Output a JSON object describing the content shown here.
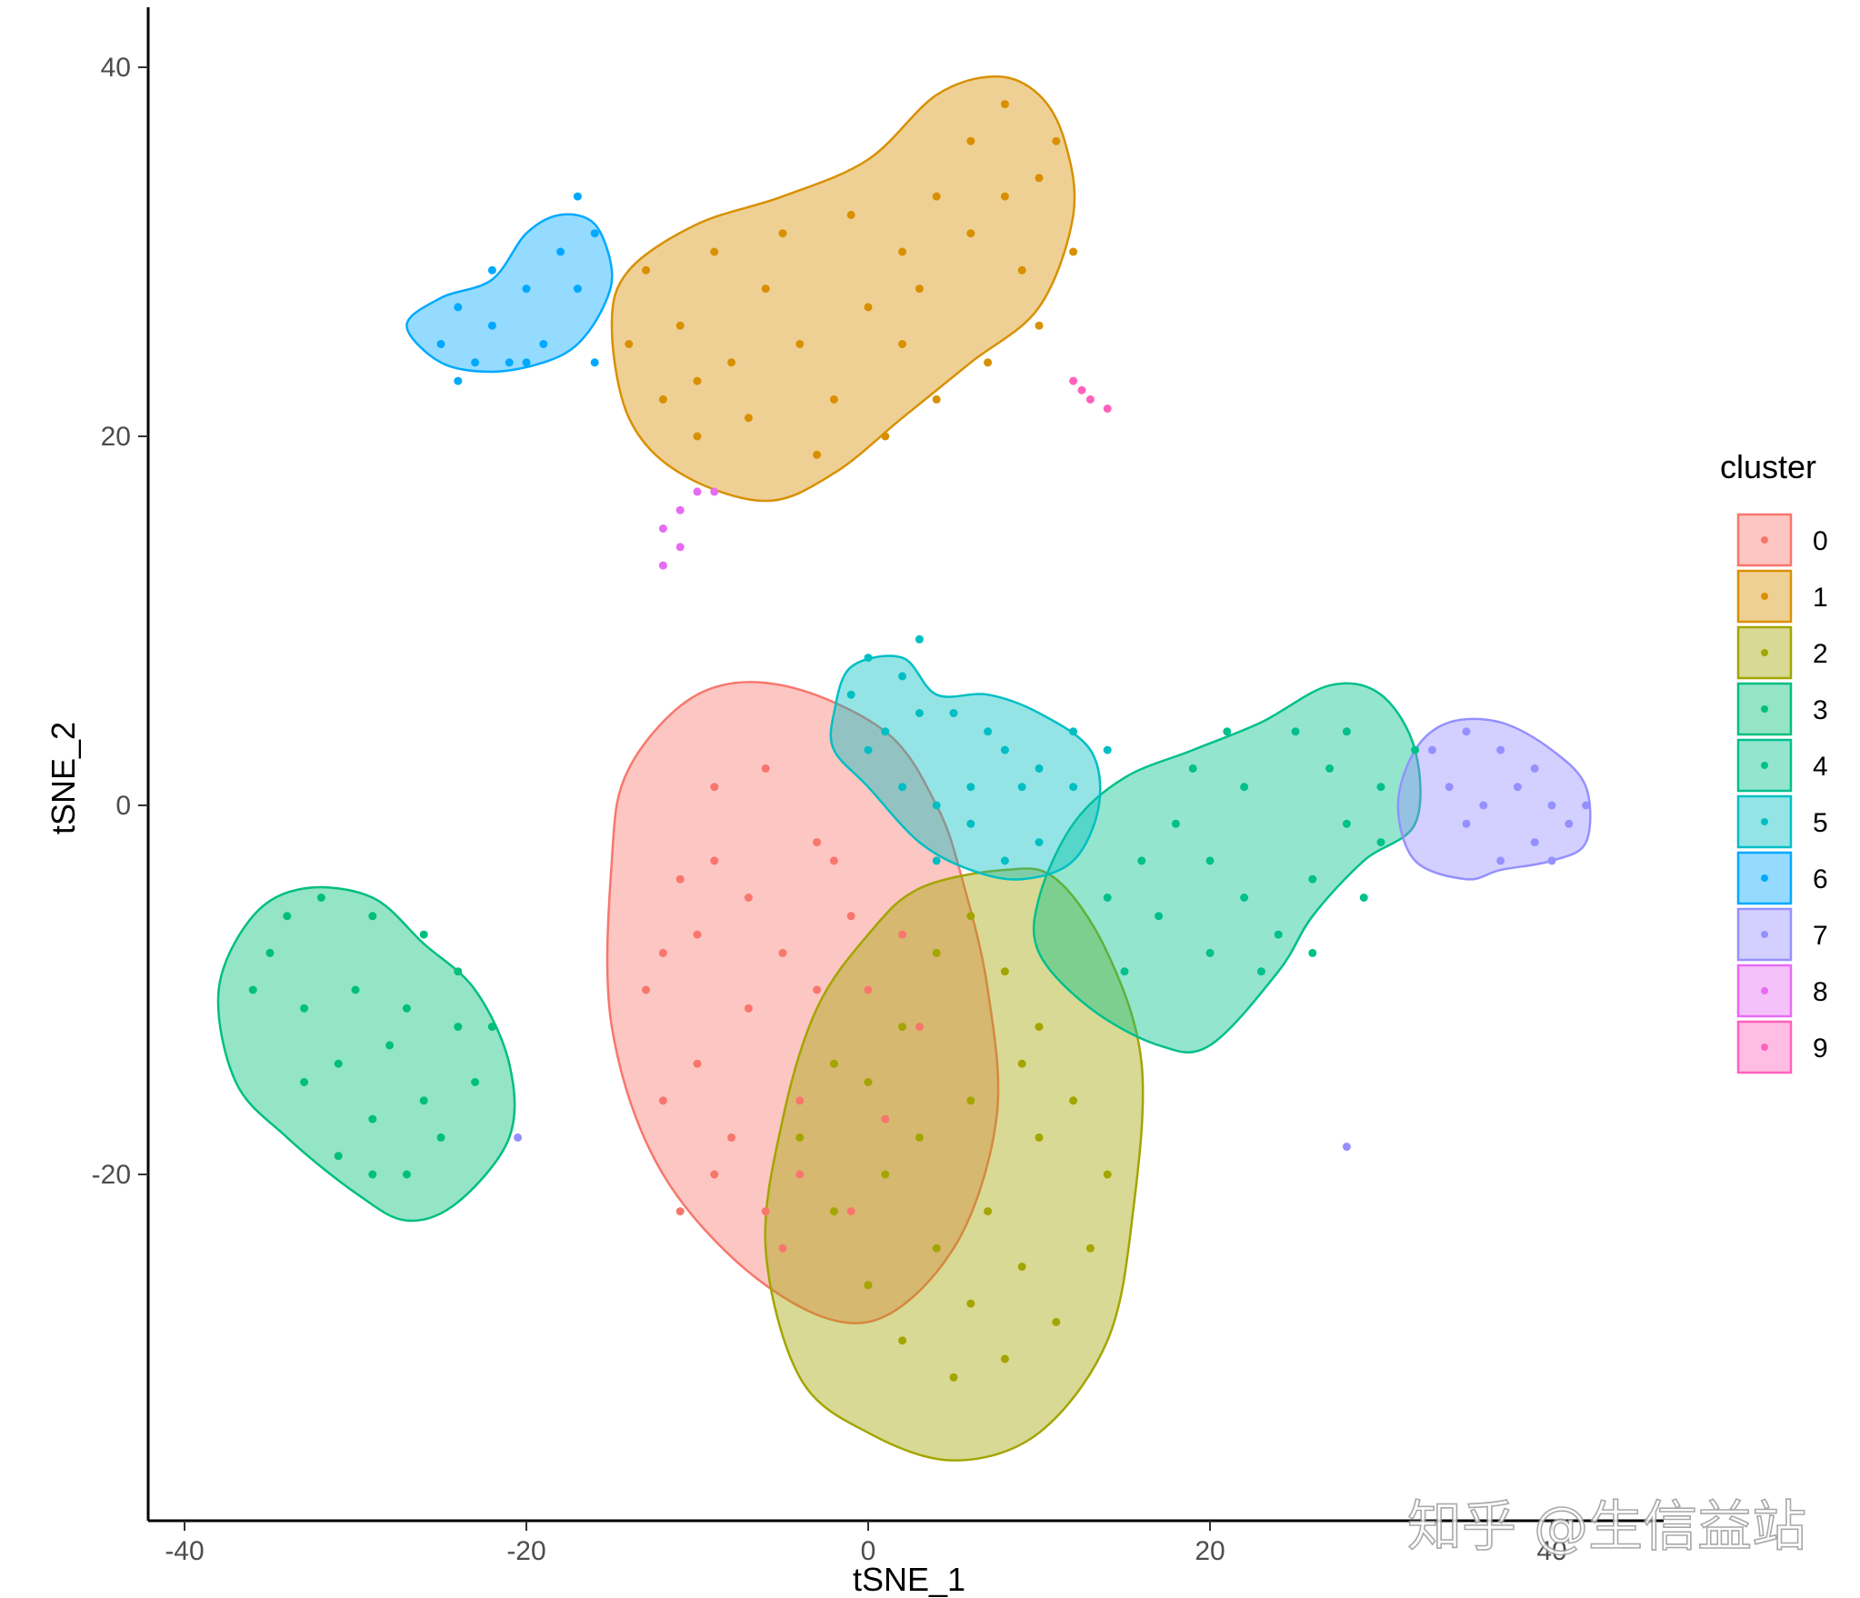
{
  "chart_data": {
    "type": "scatter",
    "title": "",
    "xlabel": "tSNE_1",
    "ylabel": "tSNE_2",
    "xlim": [
      -42,
      46
    ],
    "ylim": [
      -38,
      43
    ],
    "x_ticks": [
      -40,
      -20,
      0,
      20,
      40
    ],
    "y_ticks": [
      40,
      20,
      0,
      -20
    ],
    "x_tick_labels": [
      "-40",
      "-20",
      "0",
      "20",
      "40"
    ],
    "y_tick_labels": [
      "40",
      "20",
      "0",
      "-20"
    ],
    "grid": false,
    "legend": {
      "title": "cluster",
      "position": "right"
    },
    "series": [
      {
        "name": "0",
        "color": "#F8766D",
        "points": [
          [
            -3,
            -10
          ],
          [
            -5,
            -8
          ],
          [
            -7,
            -5
          ],
          [
            -9,
            -3
          ],
          [
            -12,
            -8
          ],
          [
            -10,
            -14
          ],
          [
            -8,
            -18
          ],
          [
            -6,
            -22
          ],
          [
            -4,
            -20
          ],
          [
            -2,
            -14
          ],
          [
            0,
            -10
          ],
          [
            -1,
            -6
          ],
          [
            -3,
            -2
          ],
          [
            -6,
            2
          ],
          [
            -9,
            1
          ],
          [
            -11,
            -4
          ],
          [
            -13,
            -10
          ],
          [
            -12,
            -16
          ],
          [
            -9,
            -20
          ],
          [
            -5,
            -24
          ],
          [
            -1,
            -22
          ],
          [
            1,
            -17
          ],
          [
            3,
            -12
          ],
          [
            2,
            -7
          ],
          [
            -2,
            -3
          ],
          [
            -7,
            -11
          ],
          [
            -10,
            -7
          ],
          [
            -4,
            -16
          ],
          [
            0,
            -26
          ],
          [
            -11,
            -22
          ]
        ],
        "hull": [
          [
            -15,
            -3
          ],
          [
            -14,
            2
          ],
          [
            -10,
            6
          ],
          [
            -5,
            6.5
          ],
          [
            1,
            4
          ],
          [
            4,
            0
          ],
          [
            5.5,
            -4
          ],
          [
            7,
            -10
          ],
          [
            7.5,
            -17
          ],
          [
            5,
            -24
          ],
          [
            0,
            -28
          ],
          [
            -6,
            -26
          ],
          [
            -12,
            -20
          ],
          [
            -15,
            -12
          ]
        ]
      },
      {
        "name": "1",
        "color": "#D89000",
        "points": [
          [
            -14,
            25
          ],
          [
            -12,
            22
          ],
          [
            -10,
            20
          ],
          [
            -8,
            24
          ],
          [
            -6,
            28
          ],
          [
            -4,
            25
          ],
          [
            -2,
            22
          ],
          [
            0,
            27
          ],
          [
            2,
            30
          ],
          [
            4,
            33
          ],
          [
            6,
            36
          ],
          [
            8,
            38
          ],
          [
            10,
            34
          ],
          [
            12,
            30
          ],
          [
            10,
            26
          ],
          [
            7,
            24
          ],
          [
            4,
            22
          ],
          [
            1,
            20
          ],
          [
            -3,
            19
          ],
          [
            -7,
            21
          ],
          [
            -11,
            26
          ],
          [
            -13,
            29
          ],
          [
            -9,
            30
          ],
          [
            -5,
            31
          ],
          [
            -1,
            32
          ],
          [
            3,
            28
          ],
          [
            6,
            31
          ],
          [
            9,
            29
          ],
          [
            11,
            36
          ],
          [
            8,
            33
          ],
          [
            -10,
            23
          ],
          [
            2,
            25
          ]
        ],
        "hull": [
          [
            -15,
            26
          ],
          [
            -14,
            29
          ],
          [
            -10,
            31.5
          ],
          [
            -5,
            33
          ],
          [
            0,
            35
          ],
          [
            4,
            38.5
          ],
          [
            7.5,
            39.5
          ],
          [
            10,
            38.5
          ],
          [
            11.5,
            36
          ],
          [
            12,
            32
          ],
          [
            10,
            27
          ],
          [
            6,
            24
          ],
          [
            2,
            21
          ],
          [
            -2,
            18
          ],
          [
            -6,
            16.5
          ],
          [
            -11,
            18
          ],
          [
            -14,
            21
          ]
        ]
      },
      {
        "name": "2",
        "color": "#A3A500",
        "points": [
          [
            0,
            -15
          ],
          [
            2,
            -12
          ],
          [
            4,
            -8
          ],
          [
            6,
            -6
          ],
          [
            8,
            -9
          ],
          [
            10,
            -12
          ],
          [
            12,
            -16
          ],
          [
            14,
            -20
          ],
          [
            13,
            -24
          ],
          [
            11,
            -28
          ],
          [
            8,
            -30
          ],
          [
            5,
            -31
          ],
          [
            2,
            -29
          ],
          [
            0,
            -26
          ],
          [
            -2,
            -22
          ],
          [
            -4,
            -18
          ],
          [
            -2,
            -14
          ],
          [
            1,
            -20
          ],
          [
            4,
            -24
          ],
          [
            7,
            -22
          ],
          [
            10,
            -18
          ],
          [
            9,
            -14
          ],
          [
            6,
            -16
          ],
          [
            3,
            -18
          ],
          [
            6,
            -27
          ],
          [
            9,
            -25
          ]
        ],
        "hull": [
          [
            -6,
            -24
          ],
          [
            -5,
            -17
          ],
          [
            -3,
            -11
          ],
          [
            0,
            -7
          ],
          [
            3,
            -4.5
          ],
          [
            8,
            -3.5
          ],
          [
            11,
            -4
          ],
          [
            14,
            -8
          ],
          [
            16,
            -14
          ],
          [
            15.5,
            -22
          ],
          [
            14,
            -29
          ],
          [
            10,
            -34
          ],
          [
            5,
            -35.5
          ],
          [
            0,
            -34
          ],
          [
            -4,
            -31
          ]
        ]
      },
      {
        "name": "3",
        "color": "#00BF7D",
        "points": [
          [
            -35,
            -8
          ],
          [
            -33,
            -11
          ],
          [
            -31,
            -14
          ],
          [
            -29,
            -17
          ],
          [
            -27,
            -20
          ],
          [
            -25,
            -18
          ],
          [
            -23,
            -15
          ],
          [
            -22,
            -12
          ],
          [
            -24,
            -9
          ],
          [
            -26,
            -7
          ],
          [
            -29,
            -6
          ],
          [
            -32,
            -5
          ],
          [
            -34,
            -6
          ],
          [
            -30,
            -10
          ],
          [
            -28,
            -13
          ],
          [
            -26,
            -16
          ],
          [
            -33,
            -15
          ],
          [
            -31,
            -19
          ],
          [
            -24,
            -12
          ],
          [
            -36,
            -10
          ],
          [
            -27,
            -11
          ],
          [
            -29,
            -20
          ]
        ],
        "hull": [
          [
            -38,
            -10
          ],
          [
            -36,
            -6
          ],
          [
            -33,
            -4.5
          ],
          [
            -29,
            -5
          ],
          [
            -26,
            -7.5
          ],
          [
            -23,
            -10
          ],
          [
            -21,
            -14
          ],
          [
            -21,
            -18
          ],
          [
            -24,
            -21.5
          ],
          [
            -27,
            -22.5
          ],
          [
            -30,
            -21
          ],
          [
            -34,
            -18
          ],
          [
            -37,
            -15
          ]
        ]
      },
      {
        "name": "4",
        "color": "#00C08B",
        "points": [
          [
            14,
            -5
          ],
          [
            16,
            -3
          ],
          [
            18,
            -1
          ],
          [
            20,
            -3
          ],
          [
            22,
            -5
          ],
          [
            24,
            -7
          ],
          [
            26,
            -4
          ],
          [
            28,
            -1
          ],
          [
            30,
            1
          ],
          [
            32,
            3
          ],
          [
            30,
            -2
          ],
          [
            27,
            2
          ],
          [
            25,
            4
          ],
          [
            22,
            1
          ],
          [
            19,
            2
          ],
          [
            17,
            -6
          ],
          [
            20,
            -8
          ],
          [
            23,
            -9
          ],
          [
            26,
            -8
          ],
          [
            29,
            -5
          ],
          [
            21,
            4
          ],
          [
            28,
            4
          ],
          [
            15,
            -9
          ]
        ],
        "hull": [
          [
            10,
            -5
          ],
          [
            12,
            -1
          ],
          [
            15,
            1.5
          ],
          [
            19,
            3
          ],
          [
            23,
            4.5
          ],
          [
            27,
            6.5
          ],
          [
            30,
            6
          ],
          [
            32,
            3
          ],
          [
            32,
            -1
          ],
          [
            29,
            -3
          ],
          [
            26,
            -6
          ],
          [
            24,
            -9
          ],
          [
            20,
            -13
          ],
          [
            17,
            -13
          ],
          [
            13,
            -11
          ],
          [
            10,
            -8
          ]
        ]
      },
      {
        "name": "5",
        "color": "#00BFC4",
        "points": [
          [
            0,
            8
          ],
          [
            2,
            7
          ],
          [
            3,
            5
          ],
          [
            1,
            4
          ],
          [
            0,
            3
          ],
          [
            2,
            1
          ],
          [
            4,
            0
          ],
          [
            6,
            1
          ],
          [
            8,
            3
          ],
          [
            10,
            2
          ],
          [
            12,
            1
          ],
          [
            10,
            -2
          ],
          [
            8,
            -3
          ],
          [
            6,
            -1
          ],
          [
            4,
            -3
          ],
          [
            12,
            4
          ],
          [
            14,
            3
          ],
          [
            5,
            5
          ],
          [
            7,
            4
          ],
          [
            9,
            1
          ],
          [
            -1,
            6
          ],
          [
            3,
            9
          ]
        ],
        "hull": [
          [
            -2,
            5
          ],
          [
            -1,
            7.5
          ],
          [
            2,
            8
          ],
          [
            4,
            6
          ],
          [
            7,
            6
          ],
          [
            10,
            5
          ],
          [
            13,
            3
          ],
          [
            13.5,
            0
          ],
          [
            12,
            -3
          ],
          [
            9,
            -4
          ],
          [
            6,
            -3.5
          ],
          [
            3,
            -2
          ],
          [
            0,
            1
          ],
          [
            -2,
            3
          ]
        ]
      },
      {
        "name": "6",
        "color": "#00A9FF",
        "points": [
          [
            -25,
            25
          ],
          [
            -24,
            27
          ],
          [
            -22,
            26
          ],
          [
            -20,
            28
          ],
          [
            -18,
            30
          ],
          [
            -16,
            31
          ],
          [
            -17,
            28
          ],
          [
            -19,
            25
          ],
          [
            -21,
            24
          ],
          [
            -23,
            24
          ],
          [
            -24,
            23
          ],
          [
            -17,
            33
          ],
          [
            -16,
            24
          ],
          [
            -22,
            29
          ],
          [
            -20,
            24
          ]
        ],
        "hull": [
          [
            -27,
            26
          ],
          [
            -25,
            27.5
          ],
          [
            -22,
            28.5
          ],
          [
            -20,
            31
          ],
          [
            -18,
            32
          ],
          [
            -16,
            31.5
          ],
          [
            -15,
            29
          ],
          [
            -15.5,
            27
          ],
          [
            -17,
            25
          ],
          [
            -19,
            24
          ],
          [
            -22,
            23.5
          ],
          [
            -25,
            24
          ]
        ]
      },
      {
        "name": "7",
        "color": "#9590FF",
        "points": [
          [
            33,
            3
          ],
          [
            35,
            4
          ],
          [
            37,
            3
          ],
          [
            39,
            2
          ],
          [
            40,
            0
          ],
          [
            41,
            -1
          ],
          [
            39,
            -2
          ],
          [
            37,
            -3
          ],
          [
            35,
            -1
          ],
          [
            34,
            1
          ],
          [
            36,
            0
          ],
          [
            38,
            1
          ],
          [
            40,
            -3
          ],
          [
            42,
            0
          ],
          [
            28,
            -18.5
          ],
          [
            -20.5,
            -18
          ]
        ],
        "hull": [
          [
            31,
            0
          ],
          [
            32,
            3
          ],
          [
            34,
            4.5
          ],
          [
            37,
            4.5
          ],
          [
            40,
            3
          ],
          [
            42,
            1
          ],
          [
            42,
            -2
          ],
          [
            40,
            -3
          ],
          [
            37,
            -3.5
          ],
          [
            35,
            -4
          ],
          [
            32,
            -3
          ]
        ]
      },
      {
        "name": "8",
        "color": "#E76BF3",
        "points": [
          [
            -12,
            15
          ],
          [
            -11,
            16
          ],
          [
            -10,
            17
          ],
          [
            -11,
            14
          ],
          [
            -12,
            13
          ],
          [
            -9,
            17
          ]
        ],
        "hull": []
      },
      {
        "name": "9",
        "color": "#FF62BC",
        "points": [
          [
            12,
            23
          ],
          [
            13,
            22
          ],
          [
            14,
            21.5
          ],
          [
            12.5,
            22.5
          ]
        ],
        "hull": []
      }
    ]
  },
  "watermark": "知乎 @生信益站"
}
